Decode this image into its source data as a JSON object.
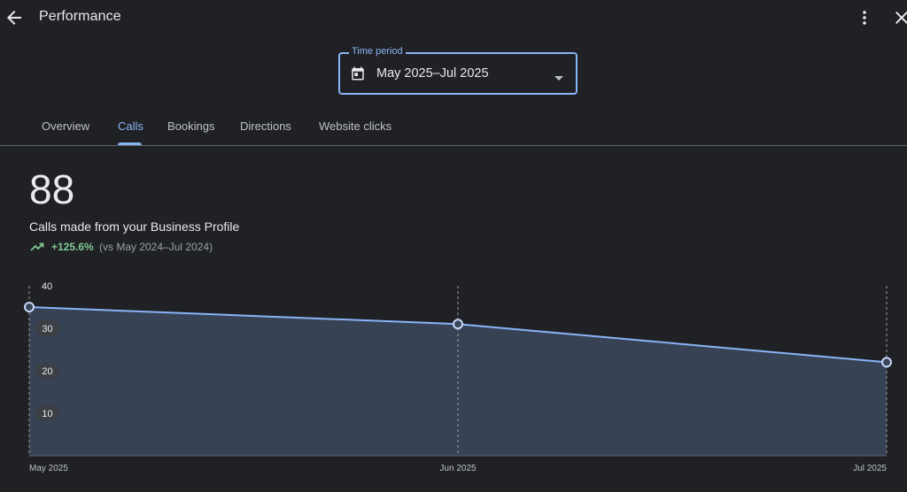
{
  "header": {
    "title": "Performance",
    "back_icon": "arrow-back-icon",
    "more_icon": "more-vert-icon",
    "close_icon": "close-icon"
  },
  "time_period": {
    "label": "Time period",
    "value": "May 2025–Jul 2025",
    "icon": "calendar-icon"
  },
  "tabs": [
    {
      "label": "Overview",
      "active": false
    },
    {
      "label": "Calls",
      "active": true
    },
    {
      "label": "Bookings",
      "active": false
    },
    {
      "label": "Directions",
      "active": false
    },
    {
      "label": "Website clicks",
      "active": false
    }
  ],
  "summary": {
    "total": "88",
    "description": "Calls made from your Business Profile",
    "trend_icon": "trending-up-icon",
    "trend_value": "+125.6%",
    "trend_compare": "(vs May 2024–Jul 2024)"
  },
  "colors": {
    "accent": "#8ab4f8",
    "positive": "#81c995",
    "background": "#202124",
    "area_fill": "#3a4559"
  },
  "chart_data": {
    "type": "area",
    "categories": [
      "May 2025",
      "Jun 2025",
      "Jul 2025"
    ],
    "series": [
      {
        "values": [
          35,
          31,
          22
        ]
      }
    ],
    "yticks": [
      "10",
      "20",
      "30",
      "40"
    ],
    "ylim": [
      0,
      40
    ],
    "grid": "vertical-dashed",
    "title": "",
    "xlabel": "",
    "ylabel": ""
  }
}
